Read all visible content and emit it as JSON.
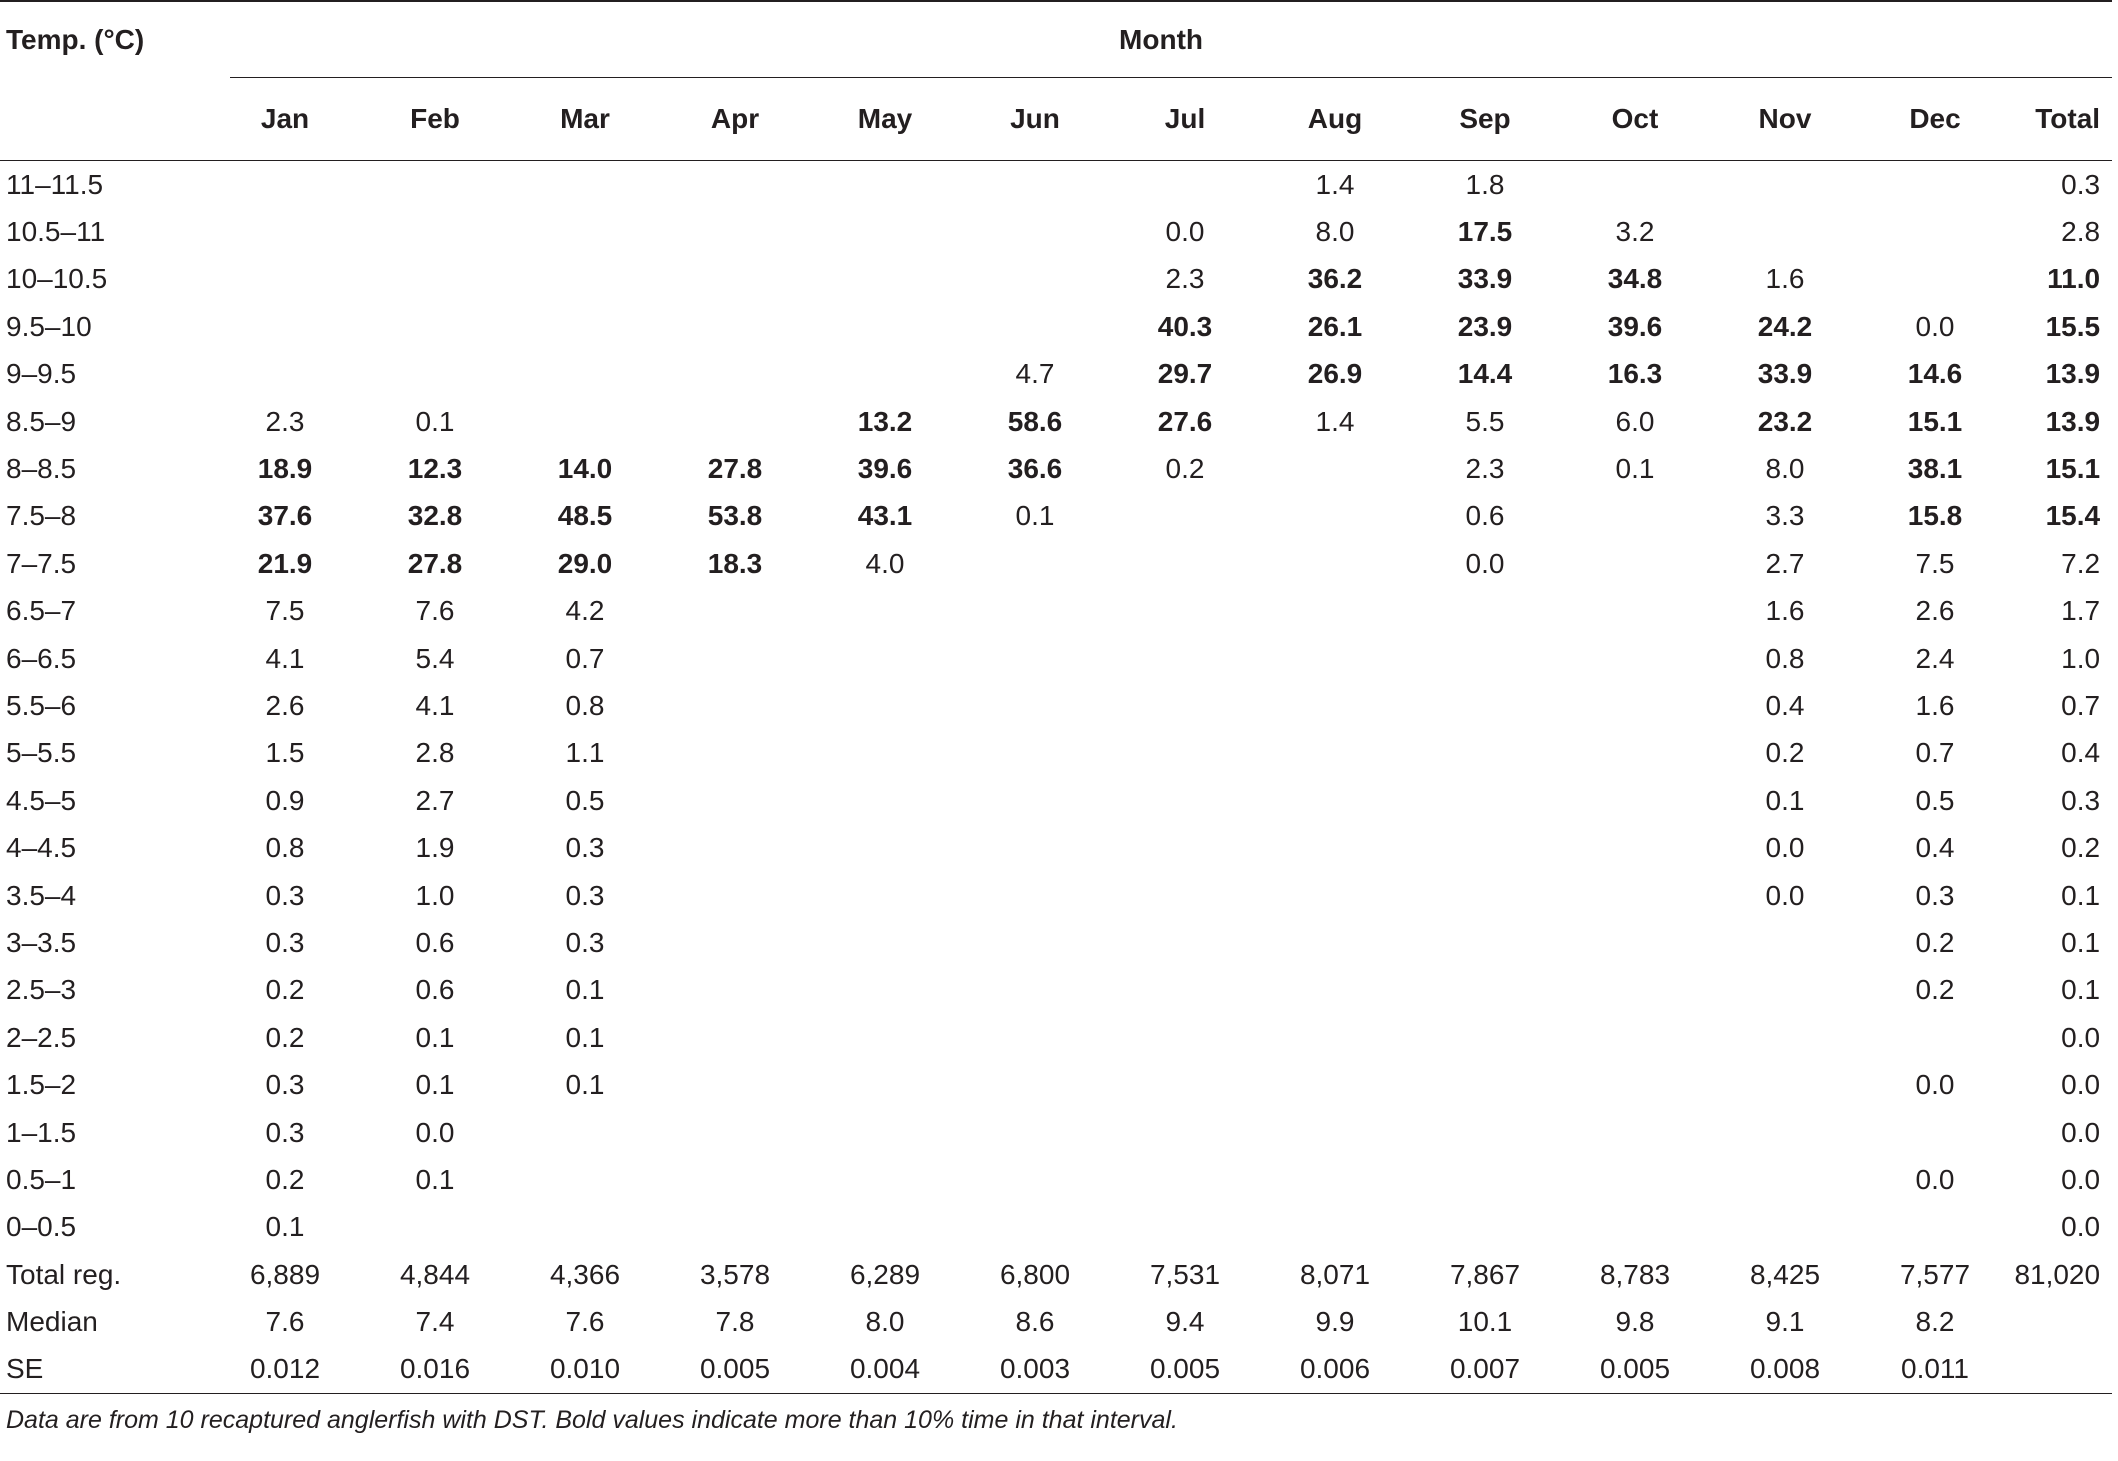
{
  "header": {
    "temp_label": "Temp. (°C)",
    "group_label": "Month",
    "columns": [
      "Jan",
      "Feb",
      "Mar",
      "Apr",
      "May",
      "Jun",
      "Jul",
      "Aug",
      "Sep",
      "Oct",
      "Nov",
      "Dec",
      "Total"
    ]
  },
  "rows": [
    {
      "label": "11–11.5",
      "cells": [
        null,
        null,
        null,
        null,
        null,
        null,
        null,
        {
          "v": "1.4"
        },
        {
          "v": "1.8"
        },
        null,
        null,
        null,
        {
          "v": "0.3"
        }
      ]
    },
    {
      "label": "10.5–11",
      "cells": [
        null,
        null,
        null,
        null,
        null,
        null,
        {
          "v": "0.0"
        },
        {
          "v": "8.0"
        },
        {
          "v": "17.5",
          "b": true
        },
        {
          "v": "3.2"
        },
        null,
        null,
        {
          "v": "2.8"
        }
      ]
    },
    {
      "label": "10–10.5",
      "cells": [
        null,
        null,
        null,
        null,
        null,
        null,
        {
          "v": "2.3"
        },
        {
          "v": "36.2",
          "b": true
        },
        {
          "v": "33.9",
          "b": true
        },
        {
          "v": "34.8",
          "b": true
        },
        {
          "v": "1.6"
        },
        null,
        {
          "v": "11.0",
          "b": true
        }
      ]
    },
    {
      "label": "9.5–10",
      "cells": [
        null,
        null,
        null,
        null,
        null,
        null,
        {
          "v": "40.3",
          "b": true
        },
        {
          "v": "26.1",
          "b": true
        },
        {
          "v": "23.9",
          "b": true
        },
        {
          "v": "39.6",
          "b": true
        },
        {
          "v": "24.2",
          "b": true
        },
        {
          "v": "0.0"
        },
        {
          "v": "15.5",
          "b": true
        }
      ]
    },
    {
      "label": "9–9.5",
      "cells": [
        null,
        null,
        null,
        null,
        null,
        {
          "v": "4.7"
        },
        {
          "v": "29.7",
          "b": true
        },
        {
          "v": "26.9",
          "b": true
        },
        {
          "v": "14.4",
          "b": true
        },
        {
          "v": "16.3",
          "b": true
        },
        {
          "v": "33.9",
          "b": true
        },
        {
          "v": "14.6",
          "b": true
        },
        {
          "v": "13.9",
          "b": true
        }
      ]
    },
    {
      "label": "8.5–9",
      "cells": [
        {
          "v": "2.3"
        },
        {
          "v": "0.1"
        },
        null,
        null,
        {
          "v": "13.2",
          "b": true
        },
        {
          "v": "58.6",
          "b": true
        },
        {
          "v": "27.6",
          "b": true
        },
        {
          "v": "1.4"
        },
        {
          "v": "5.5"
        },
        {
          "v": "6.0"
        },
        {
          "v": "23.2",
          "b": true
        },
        {
          "v": "15.1",
          "b": true
        },
        {
          "v": "13.9",
          "b": true
        }
      ]
    },
    {
      "label": "8–8.5",
      "cells": [
        {
          "v": "18.9",
          "b": true
        },
        {
          "v": "12.3",
          "b": true
        },
        {
          "v": "14.0",
          "b": true
        },
        {
          "v": "27.8",
          "b": true
        },
        {
          "v": "39.6",
          "b": true
        },
        {
          "v": "36.6",
          "b": true
        },
        {
          "v": "0.2"
        },
        null,
        {
          "v": "2.3"
        },
        {
          "v": "0.1"
        },
        {
          "v": "8.0"
        },
        {
          "v": "38.1",
          "b": true
        },
        {
          "v": "15.1",
          "b": true
        }
      ]
    },
    {
      "label": "7.5–8",
      "cells": [
        {
          "v": "37.6",
          "b": true
        },
        {
          "v": "32.8",
          "b": true
        },
        {
          "v": "48.5",
          "b": true
        },
        {
          "v": "53.8",
          "b": true
        },
        {
          "v": "43.1",
          "b": true
        },
        {
          "v": "0.1"
        },
        null,
        null,
        {
          "v": "0.6"
        },
        null,
        {
          "v": "3.3"
        },
        {
          "v": "15.8",
          "b": true
        },
        {
          "v": "15.4",
          "b": true
        }
      ]
    },
    {
      "label": "7–7.5",
      "cells": [
        {
          "v": "21.9",
          "b": true
        },
        {
          "v": "27.8",
          "b": true
        },
        {
          "v": "29.0",
          "b": true
        },
        {
          "v": "18.3",
          "b": true
        },
        {
          "v": "4.0"
        },
        null,
        null,
        null,
        {
          "v": "0.0"
        },
        null,
        {
          "v": "2.7"
        },
        {
          "v": "7.5"
        },
        {
          "v": "7.2"
        }
      ]
    },
    {
      "label": "6.5–7",
      "cells": [
        {
          "v": "7.5"
        },
        {
          "v": "7.6"
        },
        {
          "v": "4.2"
        },
        null,
        null,
        null,
        null,
        null,
        null,
        null,
        {
          "v": "1.6"
        },
        {
          "v": "2.6"
        },
        {
          "v": "1.7"
        }
      ]
    },
    {
      "label": "6–6.5",
      "cells": [
        {
          "v": "4.1"
        },
        {
          "v": "5.4"
        },
        {
          "v": "0.7"
        },
        null,
        null,
        null,
        null,
        null,
        null,
        null,
        {
          "v": "0.8"
        },
        {
          "v": "2.4"
        },
        {
          "v": "1.0"
        }
      ]
    },
    {
      "label": "5.5–6",
      "cells": [
        {
          "v": "2.6"
        },
        {
          "v": "4.1"
        },
        {
          "v": "0.8"
        },
        null,
        null,
        null,
        null,
        null,
        null,
        null,
        {
          "v": "0.4"
        },
        {
          "v": "1.6"
        },
        {
          "v": "0.7"
        }
      ]
    },
    {
      "label": "5–5.5",
      "cells": [
        {
          "v": "1.5"
        },
        {
          "v": "2.8"
        },
        {
          "v": "1.1"
        },
        null,
        null,
        null,
        null,
        null,
        null,
        null,
        {
          "v": "0.2"
        },
        {
          "v": "0.7"
        },
        {
          "v": "0.4"
        }
      ]
    },
    {
      "label": "4.5–5",
      "cells": [
        {
          "v": "0.9"
        },
        {
          "v": "2.7"
        },
        {
          "v": "0.5"
        },
        null,
        null,
        null,
        null,
        null,
        null,
        null,
        {
          "v": "0.1"
        },
        {
          "v": "0.5"
        },
        {
          "v": "0.3"
        }
      ]
    },
    {
      "label": "4–4.5",
      "cells": [
        {
          "v": "0.8"
        },
        {
          "v": "1.9"
        },
        {
          "v": "0.3"
        },
        null,
        null,
        null,
        null,
        null,
        null,
        null,
        {
          "v": "0.0"
        },
        {
          "v": "0.4"
        },
        {
          "v": "0.2"
        }
      ]
    },
    {
      "label": "3.5–4",
      "cells": [
        {
          "v": "0.3"
        },
        {
          "v": "1.0"
        },
        {
          "v": "0.3"
        },
        null,
        null,
        null,
        null,
        null,
        null,
        null,
        {
          "v": "0.0"
        },
        {
          "v": "0.3"
        },
        {
          "v": "0.1"
        }
      ]
    },
    {
      "label": "3–3.5",
      "cells": [
        {
          "v": "0.3"
        },
        {
          "v": "0.6"
        },
        {
          "v": "0.3"
        },
        null,
        null,
        null,
        null,
        null,
        null,
        null,
        null,
        {
          "v": "0.2"
        },
        {
          "v": "0.1"
        }
      ]
    },
    {
      "label": "2.5–3",
      "cells": [
        {
          "v": "0.2"
        },
        {
          "v": "0.6"
        },
        {
          "v": "0.1"
        },
        null,
        null,
        null,
        null,
        null,
        null,
        null,
        null,
        {
          "v": "0.2"
        },
        {
          "v": "0.1"
        }
      ]
    },
    {
      "label": "2–2.5",
      "cells": [
        {
          "v": "0.2"
        },
        {
          "v": "0.1"
        },
        {
          "v": "0.1"
        },
        null,
        null,
        null,
        null,
        null,
        null,
        null,
        null,
        null,
        {
          "v": "0.0"
        }
      ]
    },
    {
      "label": "1.5–2",
      "cells": [
        {
          "v": "0.3"
        },
        {
          "v": "0.1"
        },
        {
          "v": "0.1"
        },
        null,
        null,
        null,
        null,
        null,
        null,
        null,
        null,
        {
          "v": "0.0"
        },
        {
          "v": "0.0"
        }
      ]
    },
    {
      "label": "1–1.5",
      "cells": [
        {
          "v": "0.3"
        },
        {
          "v": "0.0"
        },
        null,
        null,
        null,
        null,
        null,
        null,
        null,
        null,
        null,
        null,
        {
          "v": "0.0"
        }
      ]
    },
    {
      "label": "0.5–1",
      "cells": [
        {
          "v": "0.2"
        },
        {
          "v": "0.1"
        },
        null,
        null,
        null,
        null,
        null,
        null,
        null,
        null,
        null,
        {
          "v": "0.0"
        },
        {
          "v": "0.0"
        }
      ]
    },
    {
      "label": "0–0.5",
      "cells": [
        {
          "v": "0.1"
        },
        null,
        null,
        null,
        null,
        null,
        null,
        null,
        null,
        null,
        null,
        null,
        {
          "v": "0.0"
        }
      ]
    },
    {
      "label": "Total reg.",
      "cells": [
        {
          "v": "6,889"
        },
        {
          "v": "4,844"
        },
        {
          "v": "4,366"
        },
        {
          "v": "3,578"
        },
        {
          "v": "6,289"
        },
        {
          "v": "6,800"
        },
        {
          "v": "7,531"
        },
        {
          "v": "8,071"
        },
        {
          "v": "7,867"
        },
        {
          "v": "8,783"
        },
        {
          "v": "8,425"
        },
        {
          "v": "7,577"
        },
        {
          "v": "81,020"
        }
      ]
    },
    {
      "label": "Median",
      "cells": [
        {
          "v": "7.6"
        },
        {
          "v": "7.4"
        },
        {
          "v": "7.6"
        },
        {
          "v": "7.8"
        },
        {
          "v": "8.0"
        },
        {
          "v": "8.6"
        },
        {
          "v": "9.4"
        },
        {
          "v": "9.9"
        },
        {
          "v": "10.1"
        },
        {
          "v": "9.8"
        },
        {
          "v": "9.1"
        },
        {
          "v": "8.2"
        },
        null
      ]
    },
    {
      "label": "SE",
      "cells": [
        {
          "v": "0.012"
        },
        {
          "v": "0.016"
        },
        {
          "v": "0.010"
        },
        {
          "v": "0.005"
        },
        {
          "v": "0.004"
        },
        {
          "v": "0.003"
        },
        {
          "v": "0.005"
        },
        {
          "v": "0.006"
        },
        {
          "v": "0.007"
        },
        {
          "v": "0.005"
        },
        {
          "v": "0.008"
        },
        {
          "v": "0.011"
        },
        null
      ]
    }
  ],
  "footnote": "Data are from 10 recaptured anglerfish with DST. Bold values indicate more than 10% time in that interval."
}
